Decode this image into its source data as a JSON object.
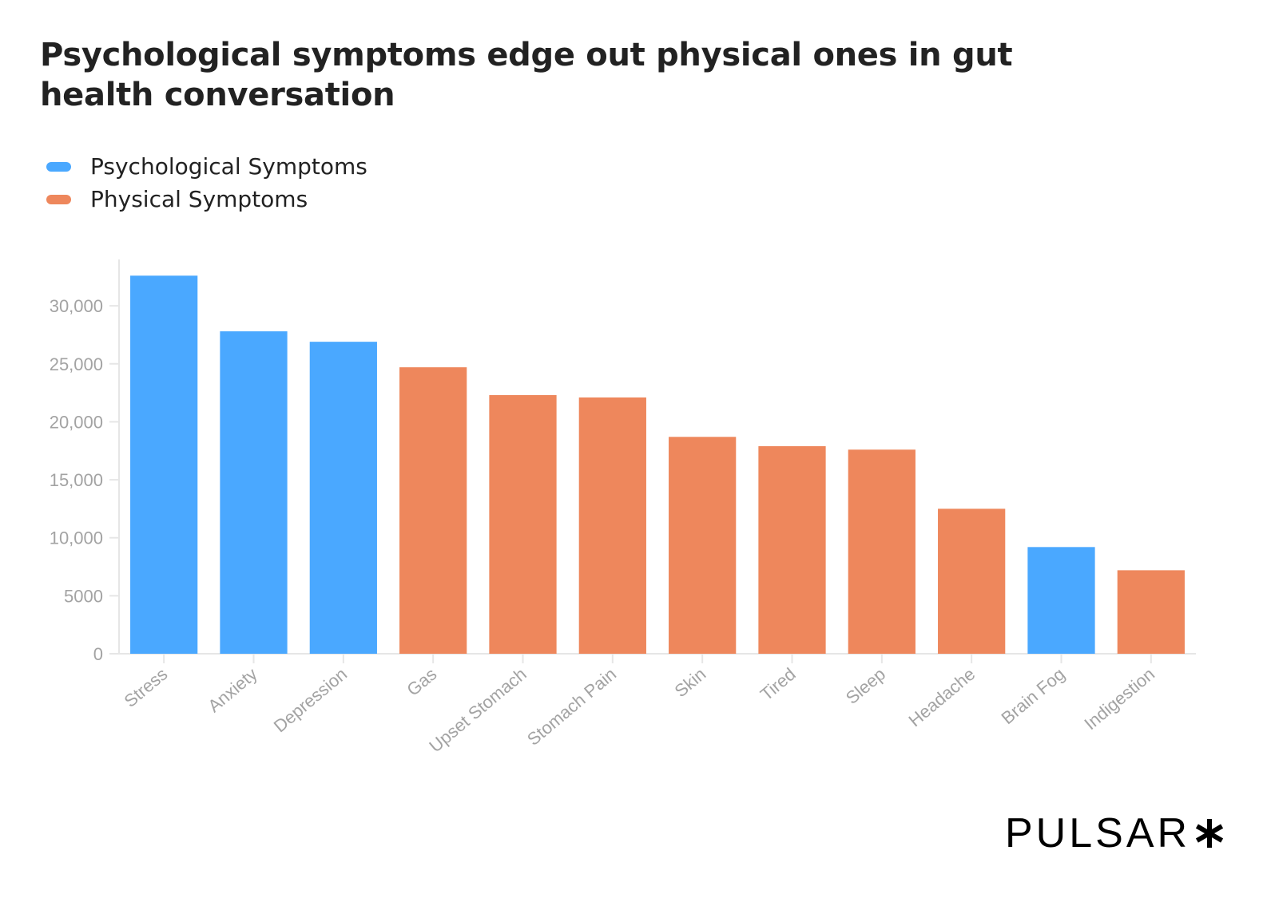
{
  "title": "Psychological symptoms edge out physical ones in gut health conversation",
  "legend": [
    {
      "label": "Psychological Symptoms",
      "color": "#4aa8ff"
    },
    {
      "label": "Physical Symptoms",
      "color": "#ee875c"
    }
  ],
  "brand": {
    "name": "PULSAR",
    "icon": "asterisk-icon"
  },
  "chart_data": {
    "type": "bar",
    "title": "Psychological symptoms edge out physical ones in gut health conversation",
    "categories": [
      "Stress",
      "Anxiety",
      "Depression",
      "Gas",
      "Upset Stomach",
      "Stomach Pain",
      "Skin",
      "Tired",
      "Sleep",
      "Headache",
      "Brain Fog",
      "Indigestion"
    ],
    "values": [
      32600,
      27800,
      26900,
      24700,
      22300,
      22100,
      18700,
      17900,
      17600,
      12500,
      9200,
      7200
    ],
    "groups": [
      "Psychological Symptoms",
      "Psychological Symptoms",
      "Psychological Symptoms",
      "Physical Symptoms",
      "Physical Symptoms",
      "Physical Symptoms",
      "Physical Symptoms",
      "Physical Symptoms",
      "Physical Symptoms",
      "Physical Symptoms",
      "Psychological Symptoms",
      "Physical Symptoms"
    ],
    "y_ticks": [
      0,
      5000,
      10000,
      15000,
      20000,
      25000,
      30000
    ],
    "y_tick_labels": [
      "0",
      "5000",
      "10,000",
      "15,000",
      "20,000",
      "25,000",
      "30,000"
    ],
    "ylim": [
      0,
      34000
    ],
    "grid": false,
    "legend_position": "top-left",
    "colors": {
      "Psychological Symptoms": "#4aa8ff",
      "Physical Symptoms": "#ee875c",
      "axis": "#e6e6e6",
      "tick_text": "#a3a3a3"
    }
  }
}
